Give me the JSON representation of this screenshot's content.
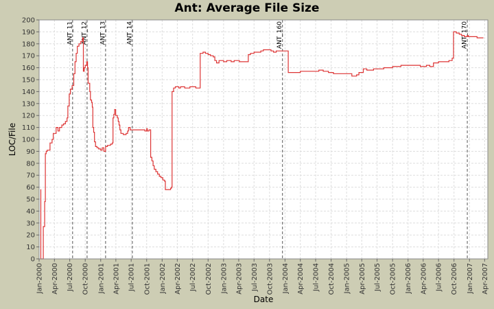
{
  "chart_data": {
    "type": "line",
    "title": "Ant: Average File Size",
    "xlabel": "Date",
    "ylabel": "LOC/File",
    "ylim": [
      0,
      200
    ],
    "yticks": [
      0,
      10,
      20,
      30,
      40,
      50,
      60,
      70,
      80,
      90,
      100,
      110,
      120,
      130,
      140,
      150,
      160,
      170,
      180,
      190,
      200
    ],
    "xlim": [
      "2000-01-01",
      "2007-04-20"
    ],
    "xticks": [
      {
        "date": "2000-01-01",
        "label": "Jan-2000"
      },
      {
        "date": "2000-04-01",
        "label": "Apr-2000"
      },
      {
        "date": "2000-07-01",
        "label": "Jul-2000"
      },
      {
        "date": "2000-10-01",
        "label": "Oct-2000"
      },
      {
        "date": "2001-01-01",
        "label": "Jan-2001"
      },
      {
        "date": "2001-04-01",
        "label": "Apr-2001"
      },
      {
        "date": "2001-07-01",
        "label": "Jul-2001"
      },
      {
        "date": "2001-10-01",
        "label": "Oct-2001"
      },
      {
        "date": "2002-01-01",
        "label": "Jan-2002"
      },
      {
        "date": "2002-04-01",
        "label": "Apr-2002"
      },
      {
        "date": "2002-07-01",
        "label": "Jul-2002"
      },
      {
        "date": "2002-10-01",
        "label": "Oct-2002"
      },
      {
        "date": "2003-01-01",
        "label": "Jan-2003"
      },
      {
        "date": "2003-04-01",
        "label": "Apr-2003"
      },
      {
        "date": "2003-07-01",
        "label": "Jul-2003"
      },
      {
        "date": "2003-10-01",
        "label": "Oct-2003"
      },
      {
        "date": "2004-01-01",
        "label": "Jan-2004"
      },
      {
        "date": "2004-04-01",
        "label": "Apr-2004"
      },
      {
        "date": "2004-07-01",
        "label": "Jul-2004"
      },
      {
        "date": "2004-10-01",
        "label": "Oct-2004"
      },
      {
        "date": "2005-01-01",
        "label": "Jan-2005"
      },
      {
        "date": "2005-04-01",
        "label": "Apr-2005"
      },
      {
        "date": "2005-07-01",
        "label": "Jul-2005"
      },
      {
        "date": "2005-10-01",
        "label": "Oct-2005"
      },
      {
        "date": "2006-01-01",
        "label": "Jan-2006"
      },
      {
        "date": "2006-04-01",
        "label": "Apr-2006"
      },
      {
        "date": "2006-07-01",
        "label": "Jul-2006"
      },
      {
        "date": "2006-10-01",
        "label": "Oct-2006"
      },
      {
        "date": "2007-01-01",
        "label": "Jan-2007"
      },
      {
        "date": "2007-04-01",
        "label": "Apr-2007"
      }
    ],
    "grid": true,
    "colors": {
      "background": "#cdcdb4",
      "plot": "#ffffff",
      "grid": "#dddddd",
      "line": "#dd3333",
      "marker": "#555555"
    },
    "markers": [
      {
        "label": "ANT_11",
        "date": "2000-07-18"
      },
      {
        "label": "ANT_12",
        "date": "2000-10-12"
      },
      {
        "label": "ANT_13",
        "date": "2001-01-30"
      },
      {
        "label": "ANT_14",
        "date": "2001-07-08"
      },
      {
        "label": "ANT_160",
        "date": "2003-12-17"
      },
      {
        "label": "ANT_170",
        "date": "2006-12-19"
      }
    ],
    "series": [
      {
        "points": [
          [
            "2000-01-10",
            58
          ],
          [
            "2000-01-11",
            0
          ],
          [
            "2000-01-25",
            0
          ],
          [
            "2000-01-26",
            27
          ],
          [
            "2000-02-02",
            27
          ],
          [
            "2000-02-03",
            48
          ],
          [
            "2000-02-06",
            48
          ],
          [
            "2000-02-07",
            88
          ],
          [
            "2000-02-12",
            90
          ],
          [
            "2000-02-18",
            91
          ],
          [
            "2000-03-05",
            91
          ],
          [
            "2000-03-06",
            97
          ],
          [
            "2000-03-18",
            100
          ],
          [
            "2000-03-25",
            105
          ],
          [
            "2000-04-10",
            105
          ],
          [
            "2000-04-11",
            110
          ],
          [
            "2000-04-22",
            107
          ],
          [
            "2000-05-01",
            110
          ],
          [
            "2000-05-15",
            112
          ],
          [
            "2000-05-25",
            113
          ],
          [
            "2000-06-05",
            115
          ],
          [
            "2000-06-15",
            118
          ],
          [
            "2000-06-20",
            128
          ],
          [
            "2000-06-28",
            138
          ],
          [
            "2000-07-05",
            142
          ],
          [
            "2000-07-15",
            145
          ],
          [
            "2000-07-25",
            155
          ],
          [
            "2000-08-01",
            165
          ],
          [
            "2000-08-08",
            172
          ],
          [
            "2000-08-15",
            178
          ],
          [
            "2000-08-25",
            180
          ],
          [
            "2000-09-05",
            182
          ],
          [
            "2000-09-15",
            185
          ],
          [
            "2000-09-20",
            157
          ],
          [
            "2000-09-25",
            160
          ],
          [
            "2000-10-01",
            162
          ],
          [
            "2000-10-10",
            165
          ],
          [
            "2000-10-15",
            160
          ],
          [
            "2000-10-18",
            147
          ],
          [
            "2000-10-28",
            140
          ],
          [
            "2000-11-01",
            133
          ],
          [
            "2000-11-08",
            131
          ],
          [
            "2000-11-12",
            127
          ],
          [
            "2000-11-15",
            110
          ],
          [
            "2000-11-20",
            106
          ],
          [
            "2000-11-25",
            98
          ],
          [
            "2000-12-01",
            94
          ],
          [
            "2000-12-10",
            93
          ],
          [
            "2000-12-20",
            92
          ],
          [
            "2001-01-01",
            91
          ],
          [
            "2001-01-10",
            93
          ],
          [
            "2001-01-20",
            90
          ],
          [
            "2001-01-30",
            94
          ],
          [
            "2001-02-10",
            95
          ],
          [
            "2001-02-28",
            96
          ],
          [
            "2001-03-10",
            97
          ],
          [
            "2001-03-15",
            118
          ],
          [
            "2001-03-20",
            121
          ],
          [
            "2001-03-25",
            125
          ],
          [
            "2001-03-31",
            120
          ],
          [
            "2001-04-10",
            118
          ],
          [
            "2001-04-15",
            115
          ],
          [
            "2001-04-20",
            112
          ],
          [
            "2001-04-25",
            108
          ],
          [
            "2001-05-01",
            105
          ],
          [
            "2001-05-15",
            104
          ],
          [
            "2001-06-01",
            105
          ],
          [
            "2001-06-10",
            107
          ],
          [
            "2001-06-15",
            110
          ],
          [
            "2001-06-25",
            108
          ],
          [
            "2001-07-20",
            108
          ],
          [
            "2001-08-20",
            108
          ],
          [
            "2001-09-20",
            107
          ],
          [
            "2001-10-01",
            109
          ],
          [
            "2001-10-05",
            107
          ],
          [
            "2001-10-15",
            108
          ],
          [
            "2001-10-20",
            108
          ],
          [
            "2001-10-25",
            85
          ],
          [
            "2001-11-01",
            82
          ],
          [
            "2001-11-08",
            78
          ],
          [
            "2001-11-15",
            75
          ],
          [
            "2001-11-25",
            73
          ],
          [
            "2001-12-05",
            71
          ],
          [
            "2001-12-15",
            69
          ],
          [
            "2001-12-25",
            68
          ],
          [
            "2002-01-05",
            66
          ],
          [
            "2002-01-15",
            65
          ],
          [
            "2002-01-20",
            58
          ],
          [
            "2002-02-20",
            59
          ],
          [
            "2002-02-25",
            60
          ],
          [
            "2002-03-01",
            140
          ],
          [
            "2002-03-10",
            143
          ],
          [
            "2002-03-20",
            144
          ],
          [
            "2002-04-10",
            143
          ],
          [
            "2002-04-20",
            144
          ],
          [
            "2002-05-15",
            143
          ],
          [
            "2002-06-15",
            144
          ],
          [
            "2002-07-20",
            143
          ],
          [
            "2002-08-10",
            143
          ],
          [
            "2002-08-15",
            172
          ],
          [
            "2002-09-01",
            173
          ],
          [
            "2002-09-15",
            172
          ],
          [
            "2002-10-01",
            171
          ],
          [
            "2002-10-15",
            170
          ],
          [
            "2002-11-01",
            169
          ],
          [
            "2002-11-10",
            166
          ],
          [
            "2002-11-20",
            164
          ],
          [
            "2002-12-05",
            166
          ],
          [
            "2003-01-01",
            165
          ],
          [
            "2003-01-20",
            166
          ],
          [
            "2003-02-15",
            165
          ],
          [
            "2003-03-05",
            166
          ],
          [
            "2003-04-01",
            166
          ],
          [
            "2003-04-05",
            165
          ],
          [
            "2003-05-01",
            165
          ],
          [
            "2003-05-20",
            165
          ],
          [
            "2003-05-28",
            171
          ],
          [
            "2003-06-10",
            172
          ],
          [
            "2003-07-01",
            173
          ],
          [
            "2003-07-20",
            173
          ],
          [
            "2003-08-10",
            174
          ],
          [
            "2003-08-25",
            175
          ],
          [
            "2003-09-20",
            175
          ],
          [
            "2003-10-10",
            174
          ],
          [
            "2003-10-25",
            173
          ],
          [
            "2003-11-10",
            174
          ],
          [
            "2003-12-10",
            174
          ],
          [
            "2004-01-15",
            174
          ],
          [
            "2004-01-20",
            156
          ],
          [
            "2004-02-15",
            156
          ],
          [
            "2004-03-01",
            156
          ],
          [
            "2004-04-01",
            157
          ],
          [
            "2004-05-15",
            157
          ],
          [
            "2004-06-15",
            157
          ],
          [
            "2004-07-10",
            157
          ],
          [
            "2004-07-20",
            158
          ],
          [
            "2004-08-15",
            157
          ],
          [
            "2004-09-15",
            156
          ],
          [
            "2004-10-15",
            155
          ],
          [
            "2004-11-15",
            155
          ],
          [
            "2004-12-15",
            155
          ],
          [
            "2005-01-15",
            155
          ],
          [
            "2005-02-01",
            153
          ],
          [
            "2005-02-15",
            153
          ],
          [
            "2005-03-01",
            154
          ],
          [
            "2005-03-15",
            156
          ],
          [
            "2005-04-05",
            156
          ],
          [
            "2005-04-10",
            159
          ],
          [
            "2005-05-01",
            158
          ],
          [
            "2005-05-20",
            158
          ],
          [
            "2005-06-10",
            159
          ],
          [
            "2005-07-15",
            159
          ],
          [
            "2005-08-10",
            160
          ],
          [
            "2005-09-01",
            160
          ],
          [
            "2005-10-01",
            161
          ],
          [
            "2005-11-01",
            161
          ],
          [
            "2005-11-20",
            162
          ],
          [
            "2006-01-15",
            162
          ],
          [
            "2006-02-15",
            162
          ],
          [
            "2006-03-15",
            161
          ],
          [
            "2006-04-20",
            162
          ],
          [
            "2006-05-10",
            161
          ],
          [
            "2006-05-25",
            161
          ],
          [
            "2006-06-01",
            164
          ],
          [
            "2006-06-15",
            164
          ],
          [
            "2006-07-01",
            165
          ],
          [
            "2006-08-15",
            165
          ],
          [
            "2006-09-01",
            166
          ],
          [
            "2006-09-20",
            168
          ],
          [
            "2006-09-28",
            190
          ],
          [
            "2006-10-15",
            189
          ],
          [
            "2006-11-01",
            188
          ],
          [
            "2006-11-15",
            187
          ],
          [
            "2006-12-01",
            186
          ],
          [
            "2006-12-19",
            187
          ],
          [
            "2006-12-25",
            186
          ],
          [
            "2007-01-15",
            186
          ],
          [
            "2007-02-15",
            185
          ],
          [
            "2007-03-10",
            185
          ],
          [
            "2007-03-25",
            185
          ]
        ]
      }
    ]
  }
}
